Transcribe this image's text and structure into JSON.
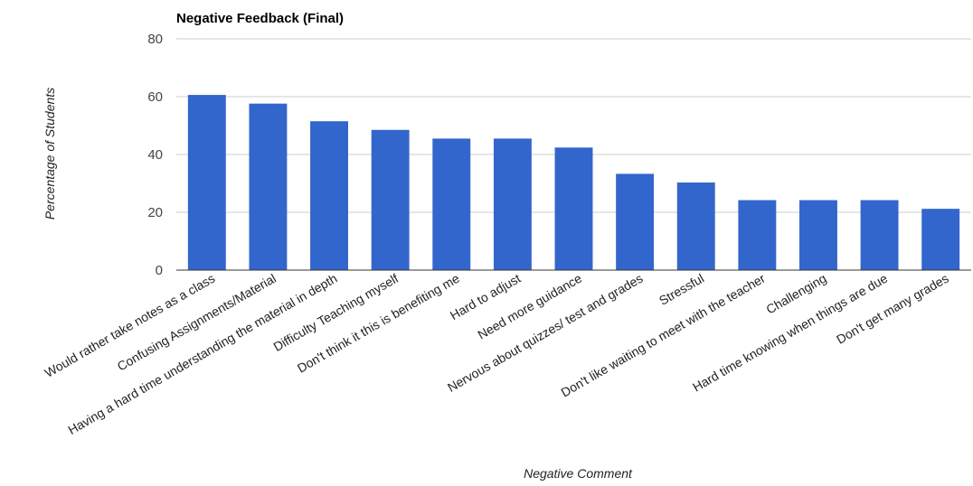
{
  "chart_data": {
    "type": "bar",
    "title": "Negative Feedback (Final)",
    "xlabel": "Negative Comment",
    "ylabel": "Percentage of Students",
    "ylim": [
      0,
      80
    ],
    "yticks": [
      0,
      20,
      40,
      60,
      80
    ],
    "grid": true,
    "bar_color": "#3366cc",
    "categories": [
      "Would rather take notes as a class",
      "Confusing Assignments/Material",
      "Having a hard time understanding the material in depth",
      "Difficulty Teaching myself",
      "Don't think it this is benefiting me",
      "Hard to adjust",
      "Need more guidance",
      "Nervous about quizzes/ test and grades",
      "Stressful",
      "Don't like waiting to meet with the teacher",
      "Challenging",
      "Hard time knowing when things are due",
      "Don't get many grades"
    ],
    "values": [
      60.6,
      57.6,
      51.5,
      48.5,
      45.5,
      45.5,
      42.4,
      33.3,
      30.3,
      24.2,
      24.2,
      24.2,
      21.2
    ]
  }
}
